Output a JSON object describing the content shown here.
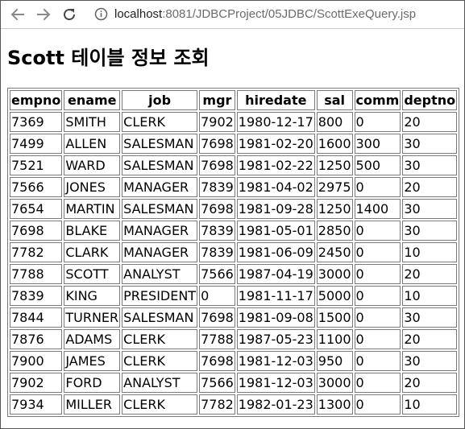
{
  "browser": {
    "url_host": "localhost",
    "url_rest": ":8081/JDBCProject/05JDBC/ScottExeQuery.jsp"
  },
  "page": {
    "title": "Scott 테이블 정보 조회"
  },
  "table": {
    "headers": [
      "empno",
      "ename",
      "job",
      "mgr",
      "hiredate",
      "sal",
      "comm",
      "deptno"
    ],
    "rows": [
      [
        "7369",
        "SMITH",
        "CLERK",
        "7902",
        "1980-12-17",
        "800",
        "0",
        "20"
      ],
      [
        "7499",
        "ALLEN",
        "SALESMAN",
        "7698",
        "1981-02-20",
        "1600",
        "300",
        "30"
      ],
      [
        "7521",
        "WARD",
        "SALESMAN",
        "7698",
        "1981-02-22",
        "1250",
        "500",
        "30"
      ],
      [
        "7566",
        "JONES",
        "MANAGER",
        "7839",
        "1981-04-02",
        "2975",
        "0",
        "20"
      ],
      [
        "7654",
        "MARTIN",
        "SALESMAN",
        "7698",
        "1981-09-28",
        "1250",
        "1400",
        "30"
      ],
      [
        "7698",
        "BLAKE",
        "MANAGER",
        "7839",
        "1981-05-01",
        "2850",
        "0",
        "30"
      ],
      [
        "7782",
        "CLARK",
        "MANAGER",
        "7839",
        "1981-06-09",
        "2450",
        "0",
        "10"
      ],
      [
        "7788",
        "SCOTT",
        "ANALYST",
        "7566",
        "1987-04-19",
        "3000",
        "0",
        "20"
      ],
      [
        "7839",
        "KING",
        "PRESIDENT",
        "0",
        "1981-11-17",
        "5000",
        "0",
        "10"
      ],
      [
        "7844",
        "TURNER",
        "SALESMAN",
        "7698",
        "1981-09-08",
        "1500",
        "0",
        "30"
      ],
      [
        "7876",
        "ADAMS",
        "CLERK",
        "7788",
        "1987-05-23",
        "1100",
        "0",
        "20"
      ],
      [
        "7900",
        "JAMES",
        "CLERK",
        "7698",
        "1981-12-03",
        "950",
        "0",
        "30"
      ],
      [
        "7902",
        "FORD",
        "ANALYST",
        "7566",
        "1981-12-03",
        "3000",
        "0",
        "20"
      ],
      [
        "7934",
        "MILLER",
        "CLERK",
        "7782",
        "1982-01-23",
        "1300",
        "0",
        "10"
      ]
    ]
  }
}
